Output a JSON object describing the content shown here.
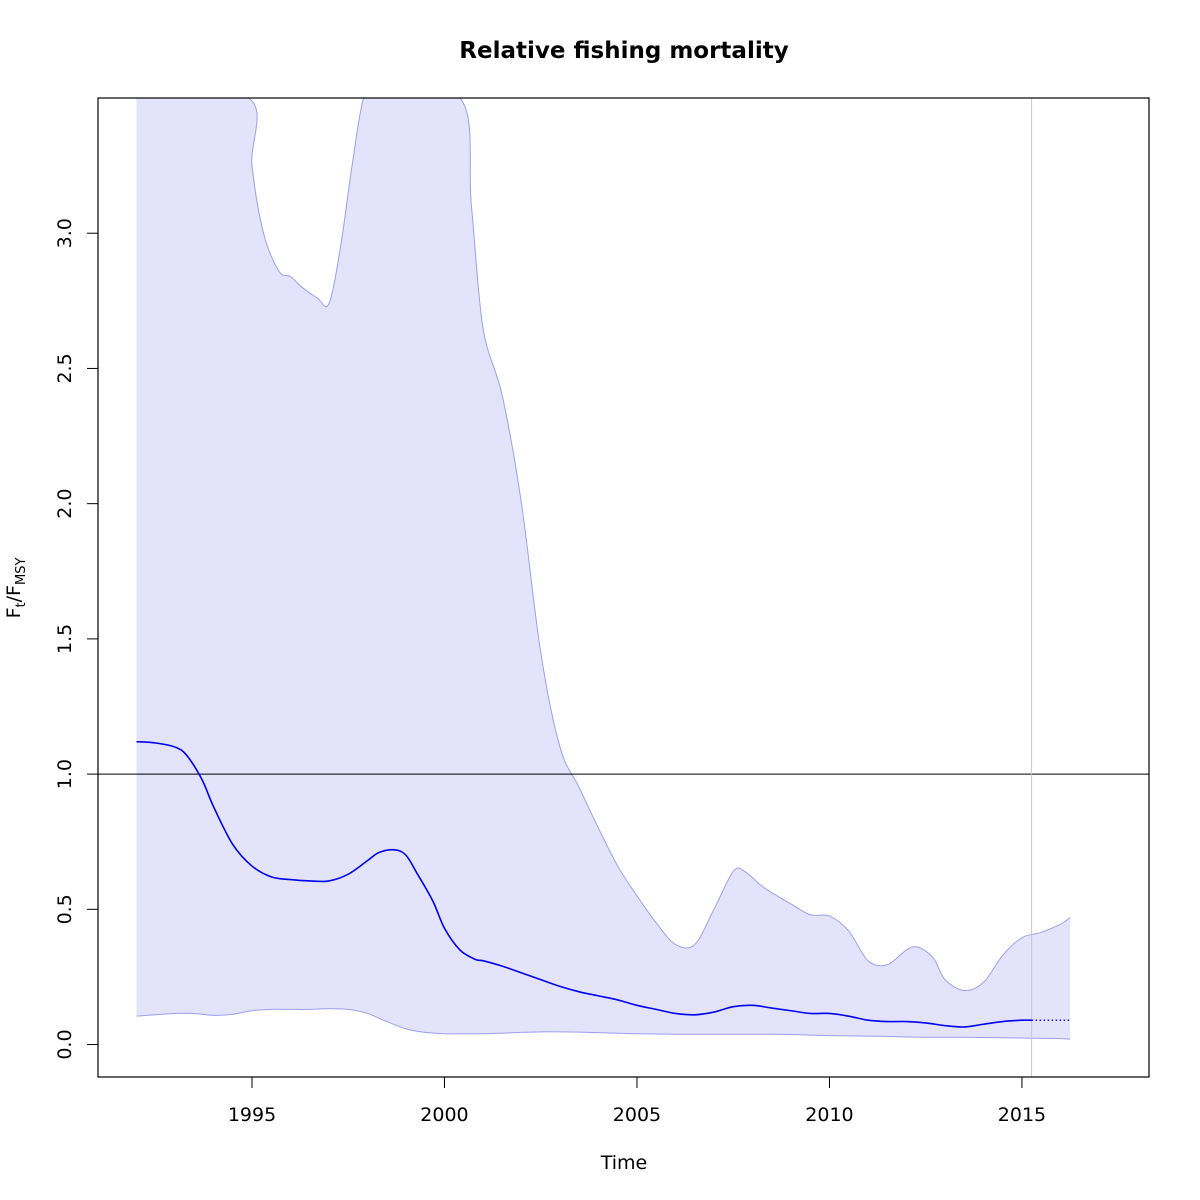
{
  "chart_data": {
    "type": "line",
    "title": "Relative fishing mortality",
    "xlabel": "Time",
    "ylabel": {
      "base": "F",
      "sub1": "t",
      "slash": "/",
      "base2": "F",
      "sub2": "MSY"
    },
    "xlim": [
      1991,
      2018.3
    ],
    "ylim": [
      -0.12,
      3.5
    ],
    "x_ticks": [
      1995,
      2000,
      2005,
      2010,
      2015
    ],
    "y_ticks": [
      0.0,
      0.5,
      1.0,
      1.5,
      2.0,
      2.5,
      3.0
    ],
    "y_tick_labels": [
      "0.0",
      "0.5",
      "1.0",
      "1.5",
      "2.0",
      "2.5",
      "3.0"
    ],
    "reference_line_y": 1.0,
    "current_time_x": 2015.25,
    "grid": false,
    "colors": {
      "estimate": "#0000ee",
      "band_fill": "#e3e3fc",
      "band_edge": "#9e9ef0",
      "reference": "#000000",
      "current_time": "#c8c8c8"
    },
    "series": [
      {
        "x": [
          1992.0,
          1992.5,
          1993.0,
          1993.3,
          1993.7,
          1994.0,
          1994.5,
          1995.0,
          1995.5,
          1996.0,
          1996.5,
          1997.0,
          1997.5,
          1998.0,
          1998.3,
          1998.7,
          1999.0,
          1999.3,
          1999.7,
          2000.0,
          2000.4,
          2000.8,
          2001.0,
          2001.5,
          2002.0,
          2002.5,
          2003.0,
          2003.5,
          2004.0,
          2004.5,
          2005.0,
          2005.5,
          2006.0,
          2006.5,
          2007.0,
          2007.5,
          2008.0,
          2008.5,
          2009.0,
          2009.5,
          2010.0,
          2010.5,
          2011.0,
          2011.5,
          2012.0,
          2012.5,
          2013.0,
          2013.5,
          2014.0,
          2014.5,
          2015.0,
          2015.25
        ],
        "values": [
          1.12,
          1.115,
          1.1,
          1.07,
          0.98,
          0.88,
          0.74,
          0.66,
          0.62,
          0.61,
          0.605,
          0.605,
          0.63,
          0.68,
          0.71,
          0.72,
          0.7,
          0.63,
          0.53,
          0.43,
          0.35,
          0.315,
          0.31,
          0.29,
          0.265,
          0.24,
          0.215,
          0.195,
          0.18,
          0.165,
          0.145,
          0.13,
          0.115,
          0.11,
          0.12,
          0.14,
          0.145,
          0.135,
          0.125,
          0.115,
          0.115,
          0.105,
          0.09,
          0.085,
          0.085,
          0.08,
          0.07,
          0.065,
          0.075,
          0.085,
          0.09,
          0.09
        ]
      },
      {
        "line_style": "dotted",
        "x": [
          2015.25,
          2016.25
        ],
        "values": [
          0.09,
          0.09
        ]
      },
      {
        "x": [
          1992.0,
          1992.5,
          1993.0,
          1993.5,
          1994.0,
          1994.5,
          1995.0,
          1995.5,
          1996.0,
          1996.5,
          1997.0,
          1997.5,
          1998.0,
          1998.5,
          1999.0,
          1999.5,
          2000.0,
          2000.5,
          2001.0,
          2001.5,
          2002.0,
          2002.5,
          2003.0,
          2003.5,
          2004.0,
          2004.5,
          2005.0,
          2005.5,
          2006.0,
          2006.5,
          2007.0,
          2007.5,
          2008.0,
          2008.5,
          2009.0,
          2009.5,
          2010.0,
          2010.5,
          2011.0,
          2011.5,
          2012.0,
          2012.5,
          2013.0,
          2013.5,
          2014.0,
          2014.5,
          2015.0,
          2015.5,
          2016.0,
          2016.25
        ],
        "values": [
          0.105,
          0.11,
          0.115,
          0.115,
          0.108,
          0.112,
          0.125,
          0.13,
          0.13,
          0.13,
          0.133,
          0.13,
          0.115,
          0.085,
          0.058,
          0.045,
          0.04,
          0.04,
          0.04,
          0.042,
          0.045,
          0.047,
          0.047,
          0.046,
          0.044,
          0.042,
          0.04,
          0.039,
          0.038,
          0.038,
          0.038,
          0.038,
          0.038,
          0.038,
          0.037,
          0.035,
          0.033,
          0.032,
          0.031,
          0.03,
          0.028,
          0.027,
          0.027,
          0.027,
          0.026,
          0.025,
          0.024,
          0.023,
          0.022,
          0.02
        ]
      },
      {
        "x": [
          1992.0,
          1994.9,
          1995.0,
          1995.3,
          1995.7,
          1996.0,
          1996.3,
          1996.7,
          1997.0,
          1997.3,
          1997.6,
          1997.9,
          1998.2,
          2000.4,
          2000.7,
          2001.0,
          2001.5,
          2002.0,
          2002.5,
          2003.0,
          2003.5,
          2004.0,
          2004.5,
          2005.0,
          2005.5,
          2006.0,
          2006.5,
          2007.0,
          2007.5,
          2007.8,
          2008.3,
          2009.0,
          2009.5,
          2010.0,
          2010.5,
          2011.0,
          2011.5,
          2012.0,
          2012.3,
          2012.7,
          2013.0,
          2013.5,
          2014.0,
          2014.5,
          2015.0,
          2015.5,
          2016.0,
          2016.25
        ],
        "values": [
          3.5,
          3.5,
          3.25,
          3.0,
          2.86,
          2.84,
          2.8,
          2.76,
          2.74,
          2.95,
          3.25,
          3.5,
          3.5,
          3.5,
          3.1,
          2.65,
          2.4,
          2.0,
          1.45,
          1.1,
          0.95,
          0.8,
          0.66,
          0.55,
          0.45,
          0.37,
          0.37,
          0.5,
          0.64,
          0.64,
          0.58,
          0.52,
          0.48,
          0.475,
          0.42,
          0.31,
          0.295,
          0.35,
          0.36,
          0.32,
          0.24,
          0.2,
          0.23,
          0.33,
          0.395,
          0.415,
          0.445,
          0.47
        ]
      }
    ]
  }
}
